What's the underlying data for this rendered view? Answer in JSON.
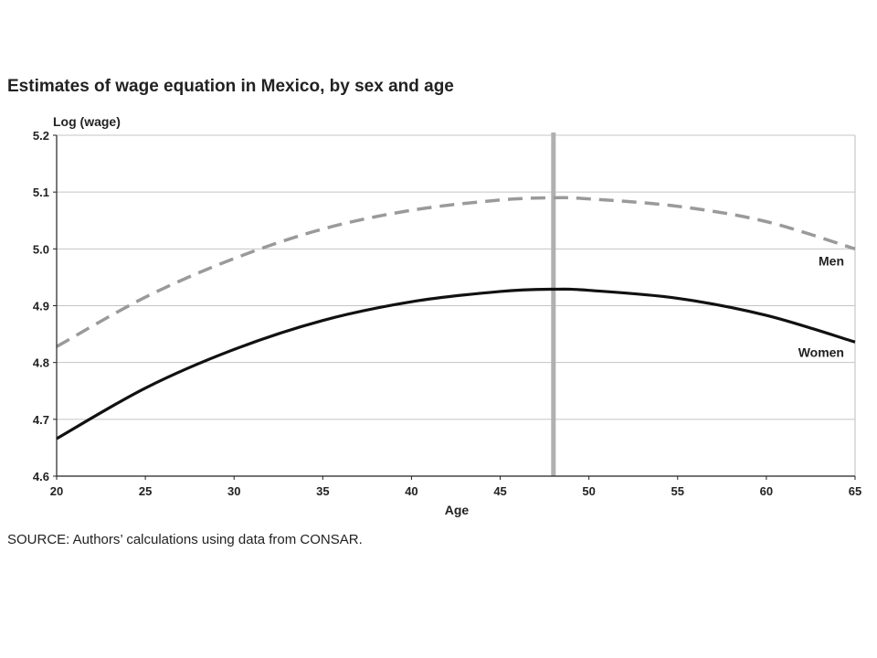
{
  "chart_data": {
    "type": "line",
    "title": "Estimates of wage equation in Mexico, by sex and age",
    "xlabel": "Age",
    "ylabel": "Log (wage)",
    "xlim": [
      20,
      65
    ],
    "ylim": [
      4.6,
      5.2
    ],
    "x_ticks": [
      20,
      25,
      30,
      35,
      40,
      45,
      50,
      55,
      60,
      65
    ],
    "y_ticks": [
      "5.2",
      "5.1",
      "5.0",
      "4.9",
      "4.8",
      "4.7",
      "4.6"
    ],
    "grid": "horizontal",
    "reference_line": {
      "x": 48,
      "color": "#b0b0b0"
    },
    "series": [
      {
        "name": "Men",
        "style": "dashed",
        "color": "#9a9a9a",
        "x": [
          20,
          25,
          30,
          35,
          40,
          45,
          48,
          50,
          55,
          60,
          65
        ],
        "y": [
          4.828,
          4.915,
          4.983,
          5.035,
          5.068,
          5.086,
          5.09,
          5.088,
          5.075,
          5.048,
          5.0
        ]
      },
      {
        "name": "Women",
        "style": "solid",
        "color": "#111111",
        "x": [
          20,
          25,
          30,
          35,
          40,
          45,
          48,
          50,
          55,
          60,
          65
        ],
        "y": [
          4.666,
          4.755,
          4.823,
          4.874,
          4.907,
          4.925,
          4.929,
          4.927,
          4.913,
          4.883,
          4.836
        ]
      }
    ]
  },
  "source_note": "SOURCE: Authors’ calculations using data from CONSAR."
}
